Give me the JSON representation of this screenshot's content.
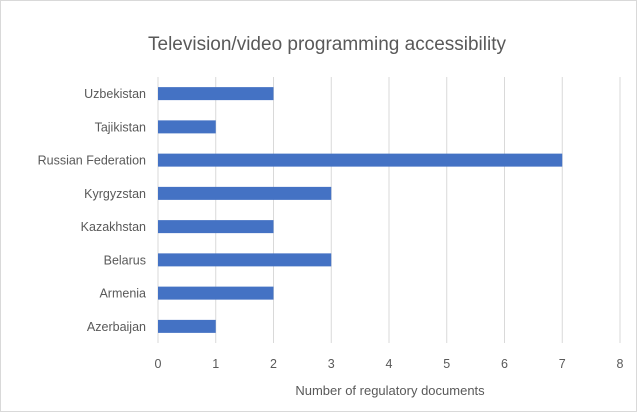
{
  "chart_data": {
    "type": "bar",
    "orientation": "horizontal",
    "title": "Television/video programming accessibility",
    "xlabel": "Number of regulatory documents",
    "ylabel": "",
    "categories": [
      "Uzbekistan",
      "Tajikistan",
      "Russian Federation",
      "Kyrgyzstan",
      "Kazakhstan",
      "Belarus",
      "Armenia",
      "Azerbaijan"
    ],
    "values": [
      2,
      1,
      7,
      3,
      2,
      3,
      2,
      1
    ],
    "xlim": [
      0,
      8
    ],
    "xticks": [
      "0",
      "1",
      "2",
      "3",
      "4",
      "5",
      "6",
      "7",
      "8"
    ],
    "grid": "vertical",
    "legend": "none",
    "bar_color": "#4472c4"
  }
}
